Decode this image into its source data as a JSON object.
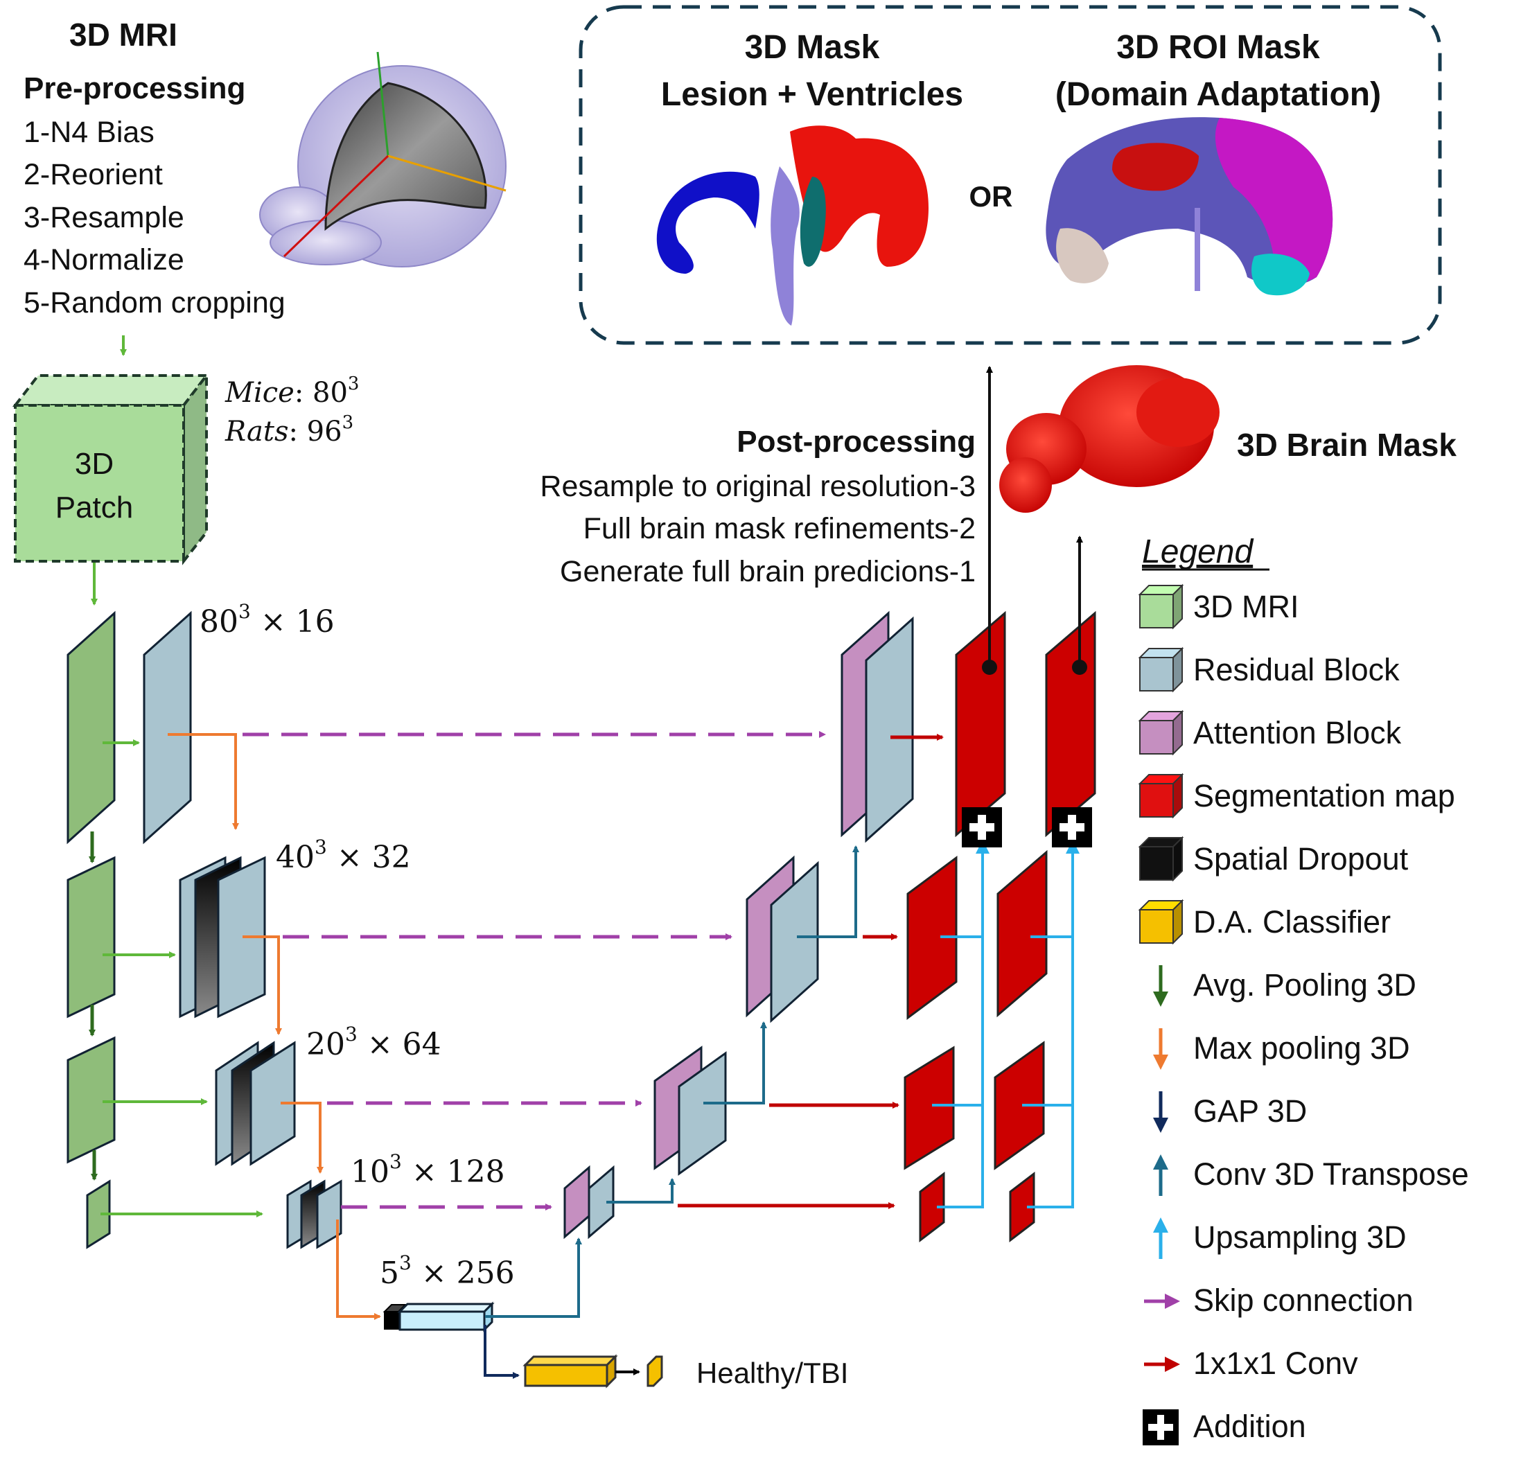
{
  "preprocessing": {
    "title": "3D MRI",
    "subtitle": "Pre-processing",
    "steps": [
      "1-N4 Bias",
      "2-Reorient",
      "3-Resample",
      "4-Normalize",
      "5-Random cropping"
    ]
  },
  "patch": {
    "label_line1": "3D",
    "label_line2": "Patch",
    "mice_label": "Mice",
    "mice_size": ": 80",
    "rats_label": "Rats",
    "rats_size": ": 96",
    "exponent": "3"
  },
  "levels": [
    {
      "base": "80",
      "exp": "3",
      "channels": " × 16"
    },
    {
      "base": "40",
      "exp": "3",
      "channels": " × 32"
    },
    {
      "base": "20",
      "exp": "3",
      "channels": " × 64"
    },
    {
      "base": "10",
      "exp": "3",
      "channels": " × 128"
    },
    {
      "base": "5",
      "exp": "3",
      "channels": " × 256"
    }
  ],
  "classifier": {
    "output_label": "Healthy/TBI"
  },
  "outputs": {
    "mask_title_line1": "3D Mask",
    "mask_title_line2": "Lesion + Ventricles",
    "or_label": "OR",
    "roi_title_line1": "3D ROI Mask",
    "roi_title_line2": "(Domain Adaptation)",
    "brain_mask_label": "3D Brain Mask"
  },
  "postprocessing": {
    "title": "Post-processing",
    "steps": [
      "Resample to original resolution-3",
      "Full brain mask refinements-2",
      "Generate full brain predicions-1"
    ]
  },
  "legend": {
    "title": "Legend",
    "items": [
      {
        "label": "3D MRI",
        "icon": "cube-icon",
        "color": "#a9dc9a"
      },
      {
        "label": "Residual Block",
        "icon": "cube-icon",
        "color": "#a9c4cf"
      },
      {
        "label": "Attention Block",
        "icon": "cube-icon",
        "color": "#c58fc0"
      },
      {
        "label": "Segmentation map",
        "icon": "cube-icon",
        "color": "#e01010"
      },
      {
        "label": "Spatial Dropout",
        "icon": "cube-icon",
        "color": "#111111"
      },
      {
        "label": "D.A. Classifier",
        "icon": "cube-icon",
        "color": "#f5c000"
      },
      {
        "label": "Avg. Pooling 3D",
        "icon": "arrow-down-icon",
        "color": "#2e6b1f"
      },
      {
        "label": "Max pooling 3D",
        "icon": "arrow-down-icon",
        "color": "#ee7a30"
      },
      {
        "label": "GAP 3D",
        "icon": "arrow-down-icon",
        "color": "#102a5c"
      },
      {
        "label": "Conv 3D Transpose",
        "icon": "arrow-up-icon",
        "color": "#1d6b8a"
      },
      {
        "label": "Upsampling 3D",
        "icon": "arrow-up-icon",
        "color": "#2ab0ea"
      },
      {
        "label": "Skip connection",
        "icon": "arrow-right-icon",
        "color": "#a040a8"
      },
      {
        "label": "1x1x1 Conv",
        "icon": "arrow-right-icon",
        "color": "#c00000"
      },
      {
        "label": "Addition",
        "icon": "plus-box-icon",
        "color": "#000000"
      }
    ]
  }
}
